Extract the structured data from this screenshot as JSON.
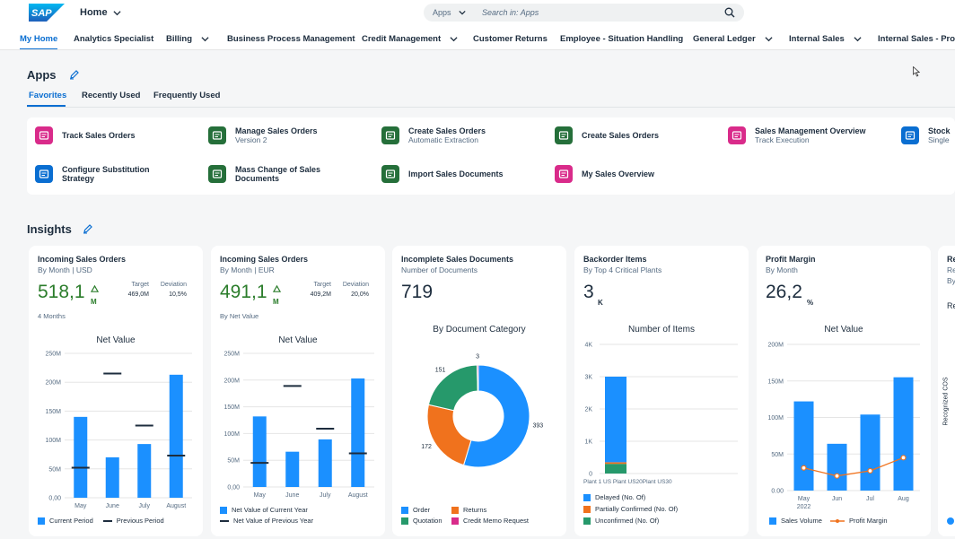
{
  "shell": {
    "logo_text": "SAP",
    "home_label": "Home",
    "search_scope": "Apps",
    "search_placeholder": "Search in: Apps"
  },
  "nav": [
    {
      "label": "My Home",
      "active": true,
      "dropdown": false
    },
    {
      "label": "Analytics Specialist",
      "dropdown": false
    },
    {
      "label": "Billing",
      "dropdown": true
    },
    {
      "label": "Business Process Management",
      "dropdown": false
    },
    {
      "label": "Credit Management",
      "dropdown": true
    },
    {
      "label": "Customer Returns",
      "dropdown": false
    },
    {
      "label": "Employee - Situation Handling",
      "dropdown": false
    },
    {
      "label": "General Ledger",
      "dropdown": true
    },
    {
      "label": "Internal Sales",
      "dropdown": true
    },
    {
      "label": "Internal Sales - Profe",
      "dropdown": false
    }
  ],
  "apps": {
    "title": "Apps",
    "tabs": [
      "Favorites",
      "Recently Used",
      "Frequently Used"
    ],
    "tiles": [
      {
        "title": "Track Sales Orders",
        "subtitle": "",
        "color": "#d92b8a"
      },
      {
        "title": "Manage Sales Orders",
        "subtitle": "Version 2",
        "color": "#256f3a"
      },
      {
        "title": "Create Sales Orders",
        "subtitle": "Automatic Extraction",
        "color": "#256f3a"
      },
      {
        "title": "Create Sales Orders",
        "subtitle": "",
        "color": "#256f3a"
      },
      {
        "title": "Sales Management Overview",
        "subtitle": "Track Execution",
        "color": "#d92b8a"
      },
      {
        "title": "Stock",
        "subtitle": "Single",
        "color": "#0a6ed1"
      },
      {
        "title": "Configure Substitution Strategy",
        "subtitle": "",
        "color": "#0a6ed1"
      },
      {
        "title": "Mass Change of Sales Documents",
        "subtitle": "",
        "color": "#256f3a"
      },
      {
        "title": "Import Sales Documents",
        "subtitle": "",
        "color": "#256f3a"
      },
      {
        "title": "My Sales Overview",
        "subtitle": "",
        "color": "#d92b8a"
      }
    ]
  },
  "insights": {
    "title": "Insights",
    "cards": [
      {
        "title": "Incoming Sales Orders",
        "subtitle": "By Month | USD",
        "kpi": "518,1",
        "unit": "M",
        "target_label": "Target",
        "target": "469,0M",
        "deviation_label": "Deviation",
        "deviation": "10,5%",
        "foot": "4 Months",
        "chart_title": "Net Value",
        "legend": [
          "Current Period",
          "Previous Period"
        ]
      },
      {
        "title": "Incoming Sales Orders",
        "subtitle": "By Month | EUR",
        "kpi": "491,1",
        "unit": "M",
        "target_label": "Target",
        "target": "409,2M",
        "deviation_label": "Deviation",
        "deviation": "20,0%",
        "foot": "By Net Value",
        "chart_title": "Net Value",
        "legend": [
          "Net Value of Current Year",
          "Net Value of Previous Year"
        ]
      },
      {
        "title": "Incomplete Sales Documents",
        "subtitle": "Number of Documents",
        "kpi": "719",
        "chart_title": "By Document Category",
        "legend": [
          "Order",
          "Returns",
          "Quotation",
          "Credit Memo Request"
        ]
      },
      {
        "title": "Backorder Items",
        "subtitle": "By Top 4 Critical Plants",
        "kpi": "3",
        "unit": "K",
        "chart_title": "Number of Items",
        "legend": [
          "Delayed (No. Of)",
          "Partially Confirmed (No. Of)",
          "Unconfirmed (No. Of)"
        ]
      },
      {
        "title": "Profit Margin",
        "subtitle": "By Month",
        "kpi": "26,2",
        "unit": "%",
        "chart_title": "Net Value",
        "legend": [
          "Sales Volume",
          "Profit Margin"
        ]
      },
      {
        "title": "Re",
        "subtitle": "Re",
        "extra": "By",
        "extra2": "Re",
        "axis_label": "Recognized COS"
      }
    ]
  },
  "chart_data": [
    {
      "type": "bar",
      "title": "Net Value",
      "categories": [
        "May",
        "June",
        "July",
        "August"
      ],
      "yticks": [
        "0,00",
        "50M",
        "100M",
        "150M",
        "200M",
        "250M"
      ],
      "ylim": [
        0,
        250
      ],
      "series": [
        {
          "name": "Current Period",
          "values": [
            140,
            70,
            93,
            213
          ],
          "color": "#1b90ff"
        },
        {
          "name": "Previous Period",
          "values": [
            52,
            215,
            125,
            73
          ],
          "color": "#1d2d3e",
          "style": "marker"
        }
      ]
    },
    {
      "type": "bar",
      "title": "Net Value",
      "categories": [
        "May",
        "June",
        "July",
        "August"
      ],
      "yticks": [
        "0,00",
        "50M",
        "100M",
        "150M",
        "200M",
        "250M"
      ],
      "ylim": [
        0,
        250
      ],
      "series": [
        {
          "name": "Net Value of Current Year",
          "values": [
            132,
            66,
            89,
            203
          ],
          "color": "#1b90ff"
        },
        {
          "name": "Net Value of Previous Year",
          "values": [
            45,
            189,
            109,
            63
          ],
          "color": "#1d2d3e",
          "style": "marker"
        }
      ]
    },
    {
      "type": "pie",
      "title": "By Document Category",
      "values": [
        393,
        172,
        151,
        3
      ],
      "labels": [
        "393",
        "172",
        "151",
        "3"
      ],
      "categories": [
        "Order",
        "Returns",
        "Quotation",
        "Credit Memo Request"
      ],
      "colors": [
        "#1b90ff",
        "#f0721d",
        "#26996b",
        "#d92b8a"
      ]
    },
    {
      "type": "bar",
      "title": "Number of Items",
      "categories": [
        "Plant 1 US",
        "Plant US20",
        "Plant US30"
      ],
      "category_label": "Plant 1 US Plant US20Plant US30",
      "yticks": [
        "0",
        "1K",
        "2K",
        "3K",
        "4K"
      ],
      "ylim": [
        0,
        4
      ],
      "series": [
        {
          "name": "Delayed (No. Of)",
          "values": [
            2.65,
            0,
            0
          ],
          "color": "#1b90ff"
        },
        {
          "name": "Partially Confirmed (No. Of)",
          "values": [
            0.05,
            0,
            0
          ],
          "color": "#f0721d"
        },
        {
          "name": "Unconfirmed (No. Of)",
          "values": [
            0.3,
            0,
            0
          ],
          "color": "#26996b"
        }
      ]
    },
    {
      "type": "bar",
      "title": "Net Value",
      "categories": [
        "May 2022",
        "Jun",
        "Jul",
        "Aug"
      ],
      "yticks": [
        "0.00",
        "50M",
        "100M",
        "150M",
        "200M"
      ],
      "ylim": [
        0,
        200
      ],
      "series": [
        {
          "name": "Sales Volume",
          "values": [
            122,
            64,
            104,
            155
          ],
          "color": "#1b90ff"
        },
        {
          "name": "Profit Margin",
          "values": [
            31,
            20,
            27,
            45
          ],
          "color": "#f0721d",
          "style": "line"
        }
      ]
    }
  ]
}
